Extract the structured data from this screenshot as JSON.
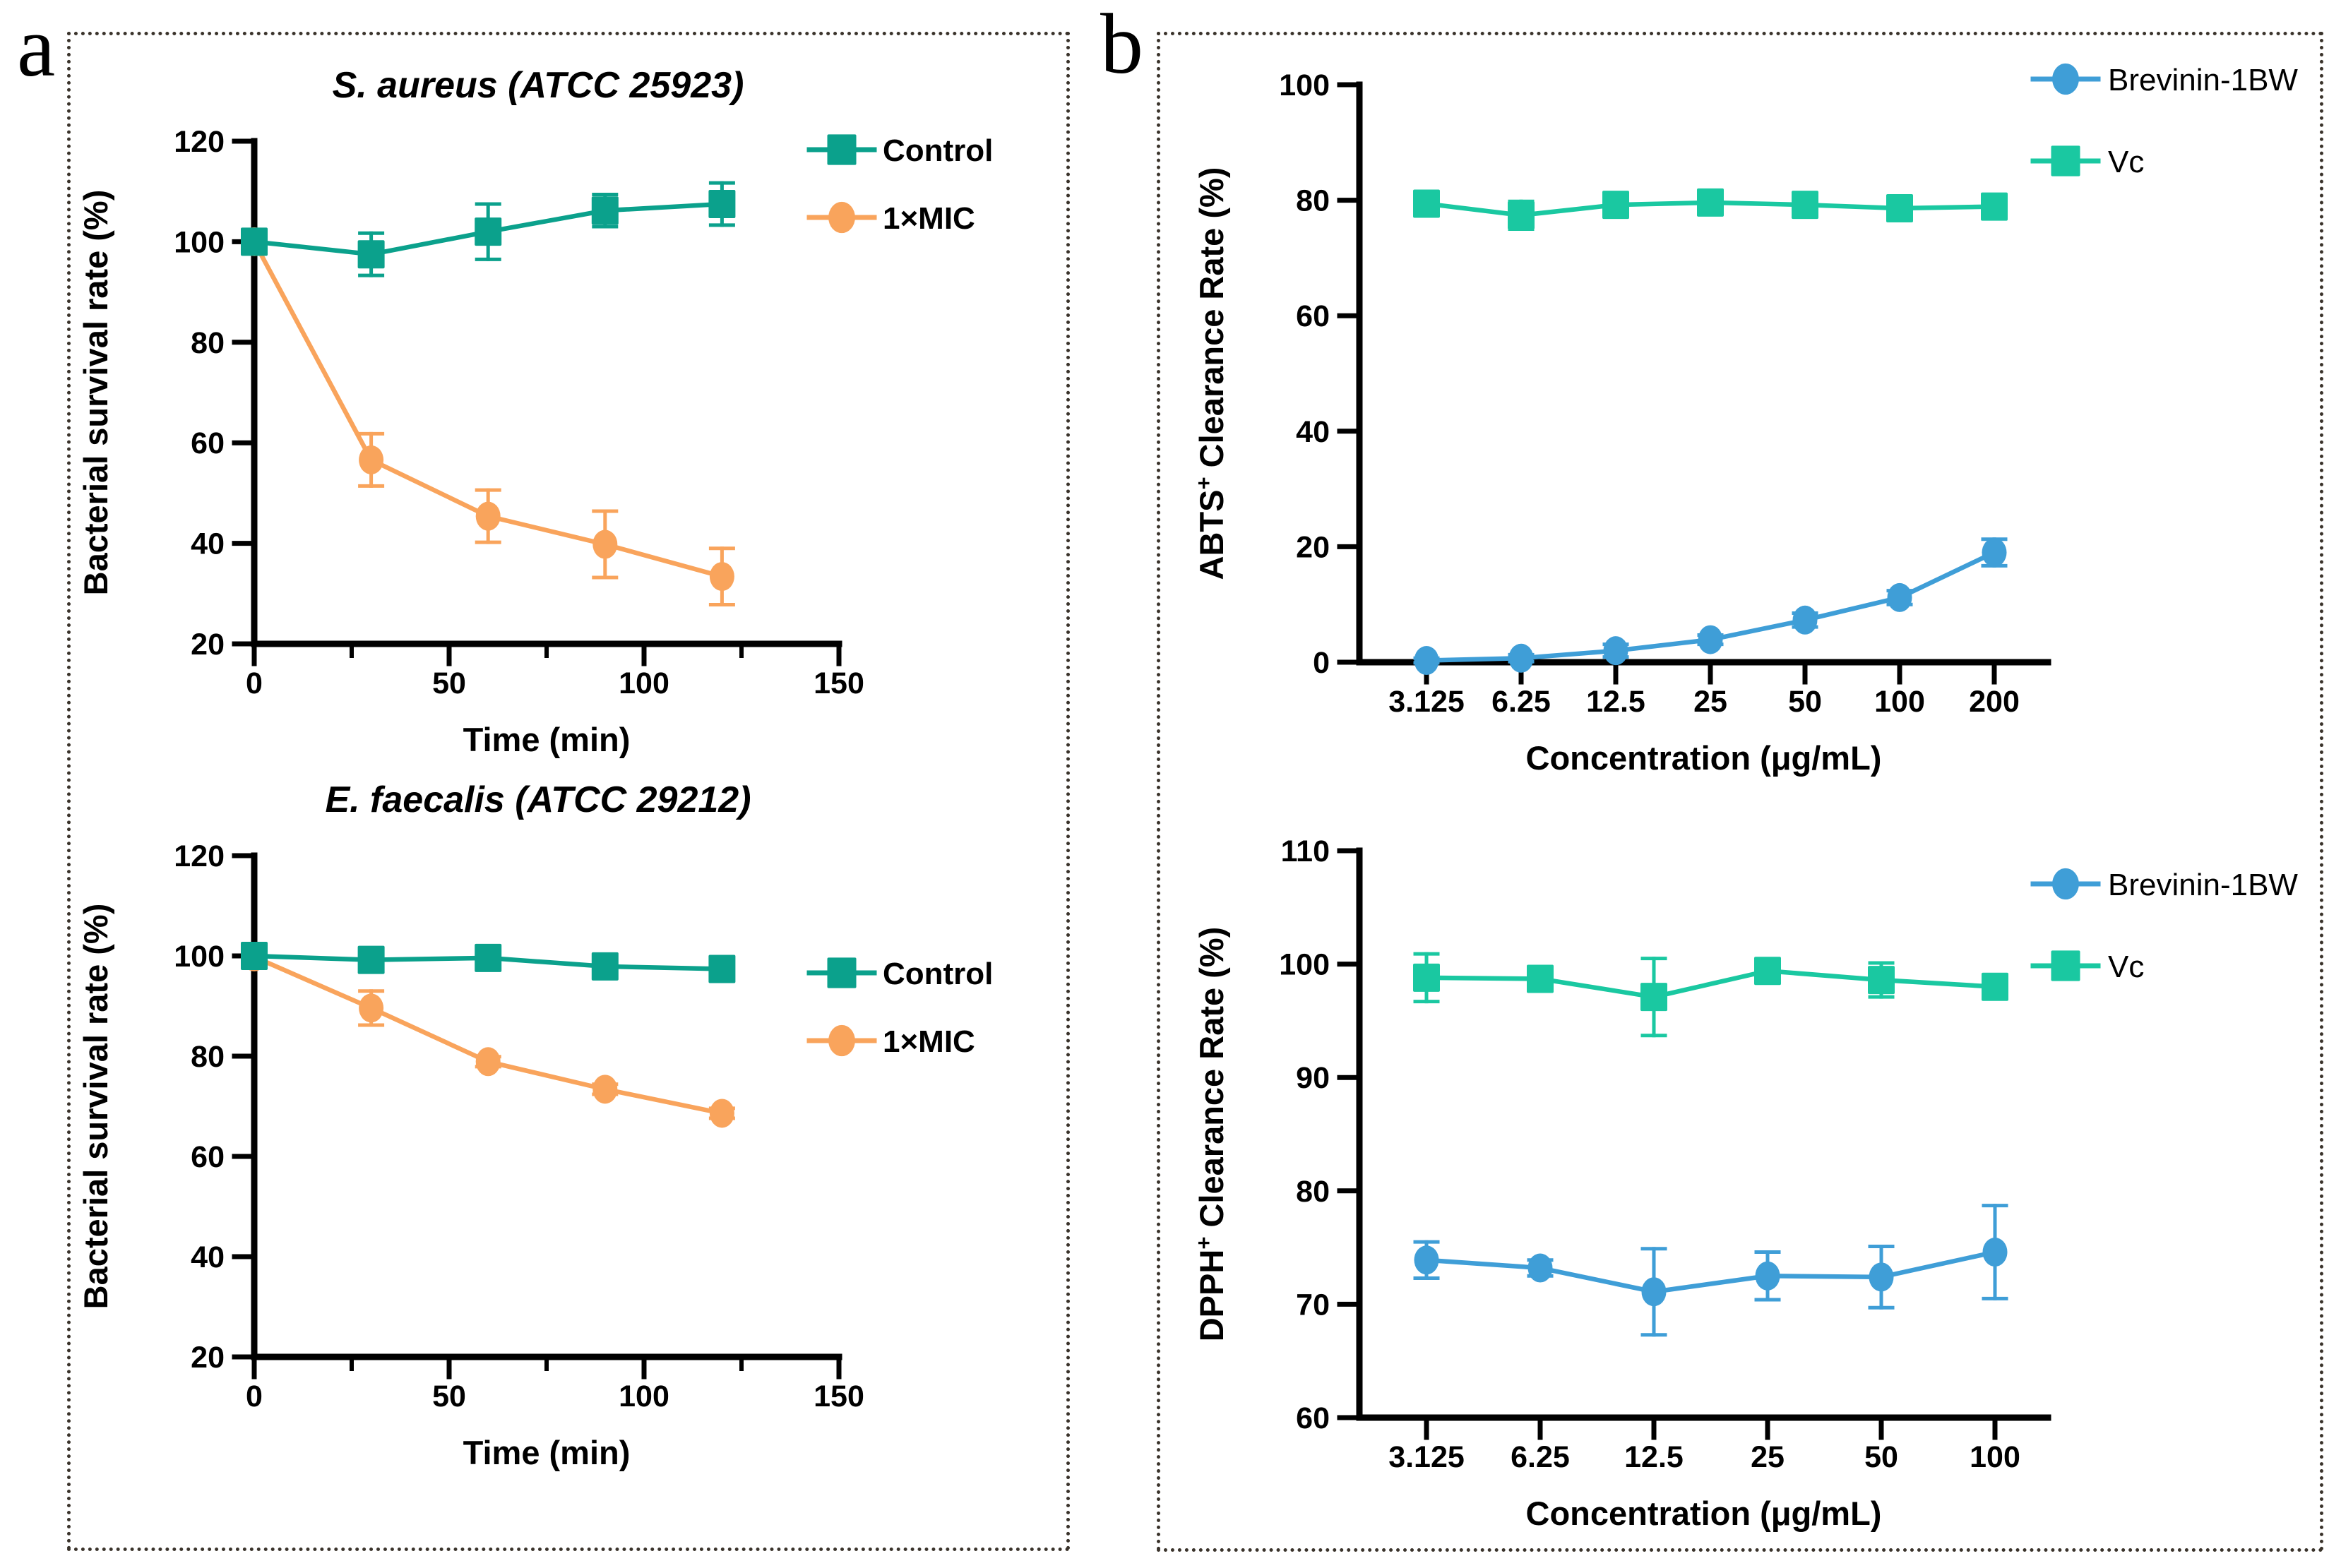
{
  "figure": {
    "panel_a_label": "a",
    "panel_b_label": "b"
  },
  "colors": {
    "control_teal": "#0BA18C",
    "mic_orange": "#F9A45C",
    "brevinin_blue": "#3F9ED7",
    "vc_green": "#1AC8A1",
    "axis_black": "#000000"
  },
  "chart_data": [
    {
      "id": "saureus",
      "type": "line",
      "title": "S. aureus (ATCC 25923)",
      "xlabel": "Time (min)",
      "ylabel": "Bacterial survival rate (%)",
      "x": [
        0,
        30,
        60,
        90,
        120
      ],
      "xlim": [
        0,
        150
      ],
      "xticks": [
        0,
        50,
        100,
        150
      ],
      "xminorticks": [
        25,
        75,
        125
      ],
      "ylim": [
        20,
        120
      ],
      "yticks": [
        20,
        40,
        60,
        80,
        100,
        120
      ],
      "grid": false,
      "legend_position": "top-right",
      "series": [
        {
          "name": "Control",
          "marker": "square",
          "color": "#0BA18C",
          "values": [
            100,
            97.5,
            102,
            106.2,
            107.5
          ],
          "errors": [
            1.8,
            4.2,
            5.5,
            3.2,
            4.2
          ]
        },
        {
          "name": "1×MIC",
          "marker": "circle",
          "color": "#F9A45C",
          "values": [
            100,
            56.6,
            45.4,
            39.8,
            33.4
          ],
          "errors": [
            0,
            5.2,
            5.2,
            6.6,
            5.6
          ]
        }
      ]
    },
    {
      "id": "efaecalis",
      "type": "line",
      "title": "E. faecalis (ATCC 29212)",
      "xlabel": "Time (min)",
      "ylabel": "Bacterial survival rate (%)",
      "x": [
        0,
        30,
        60,
        90,
        120
      ],
      "xlim": [
        0,
        150
      ],
      "xticks": [
        0,
        50,
        100,
        150
      ],
      "xminorticks": [
        25,
        75,
        125
      ],
      "ylim": [
        20,
        120
      ],
      "yticks": [
        20,
        40,
        60,
        80,
        100,
        120
      ],
      "grid": false,
      "legend_position": "top-right",
      "series": [
        {
          "name": "Control",
          "marker": "square",
          "color": "#0BA18C",
          "values": [
            100,
            99.2,
            99.6,
            97.9,
            97.4
          ],
          "errors": [
            1.6,
            1.4,
            1.2,
            1.2,
            1.4
          ]
        },
        {
          "name": "1×MIC",
          "marker": "circle",
          "color": "#F9A45C",
          "values": [
            99.8,
            89.6,
            78.9,
            73.4,
            68.6
          ],
          "errors": [
            1.2,
            3.4,
            1.0,
            1.0,
            1.0
          ]
        }
      ]
    },
    {
      "id": "abts",
      "type": "line",
      "title": "",
      "xlabel": "Concentration (μg/mL)",
      "ylabel": {
        "base": "ABTS",
        "sup": "+",
        "rest": " Clearance Rate (%)"
      },
      "categories": [
        "3.125",
        "6.25",
        "12.5",
        "25",
        "50",
        "100",
        "200"
      ],
      "ylim": [
        0,
        100
      ],
      "yticks": [
        0,
        20,
        40,
        60,
        80,
        100
      ],
      "grid": false,
      "legend_position": "top-right",
      "series": [
        {
          "name": "Brevinin-1BW",
          "marker": "circle",
          "color": "#3F9ED7",
          "values": [
            0.3,
            0.7,
            2.0,
            3.9,
            7.3,
            11.2,
            19.0
          ],
          "errors": [
            0.4,
            0.6,
            1.1,
            0.8,
            1.2,
            1.2,
            2.3
          ]
        },
        {
          "name": "Vc",
          "marker": "square",
          "color": "#1AC8A1",
          "values": [
            79.4,
            77.4,
            79.2,
            79.6,
            79.2,
            78.6,
            78.9
          ],
          "errors": [
            1.4,
            2.4,
            1.3,
            1.6,
            1.4,
            1.2,
            1.3
          ]
        }
      ]
    },
    {
      "id": "dpph",
      "type": "line",
      "title": "",
      "xlabel": "Concentration (μg/mL)",
      "ylabel": {
        "base": "DPPH",
        "sup": "+",
        "rest": " Clearance Rate (%)"
      },
      "categories": [
        "3.125",
        "6.25",
        "12.5",
        "25",
        "50",
        "100"
      ],
      "ylim": [
        60,
        110
      ],
      "yticks": [
        60,
        70,
        80,
        90,
        100,
        110
      ],
      "grid": false,
      "legend_position": "top-right",
      "series": [
        {
          "name": "Brevinin-1BW",
          "marker": "circle",
          "color": "#3F9ED7",
          "values": [
            73.9,
            73.2,
            71.1,
            72.5,
            72.4,
            74.6
          ],
          "errors": [
            1.6,
            0.7,
            3.8,
            2.1,
            2.7,
            4.1
          ]
        },
        {
          "name": "Vc",
          "marker": "square",
          "color": "#1AC8A1",
          "values": [
            98.8,
            98.7,
            97.1,
            99.4,
            98.6,
            98.0
          ],
          "errors": [
            2.1,
            0.9,
            3.4,
            0.8,
            1.5,
            0.7
          ]
        }
      ]
    }
  ]
}
